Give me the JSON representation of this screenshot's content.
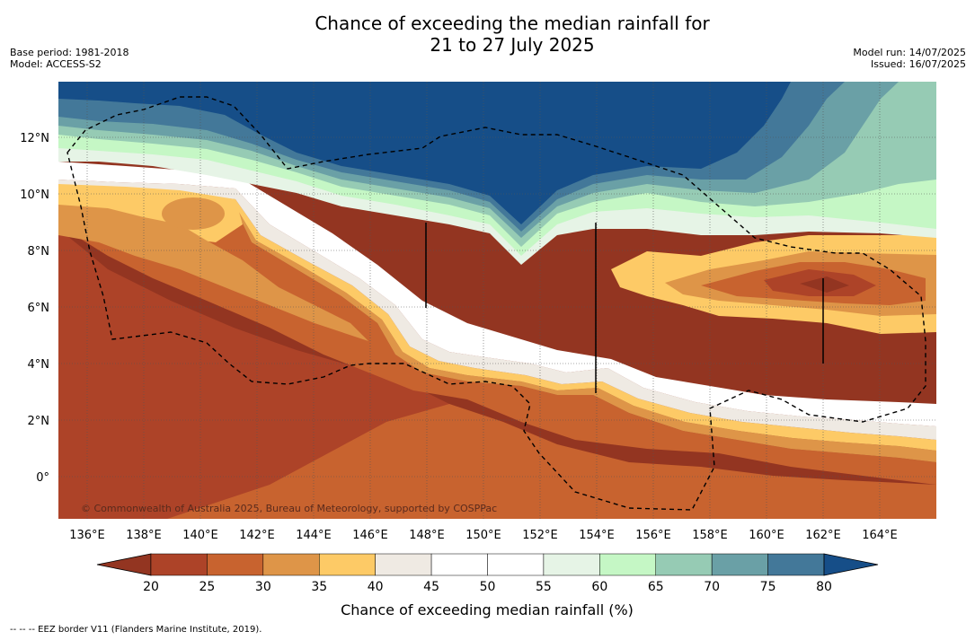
{
  "title_line1": "Chance of exceeding the median rainfall for",
  "title_line2": "21 to 27 July 2025",
  "base_period": "Base period: 1981-2018",
  "model": "Model: ACCESS-S2",
  "model_run": "Model run: 14/07/2025",
  "issued": "Issued: 16/07/2025",
  "copyright": "© Commonwealth of Australia 2025, Bureau of Meteorology, supported by COSPPac",
  "lon_ticks": [
    "136°E",
    "138°E",
    "140°E",
    "142°E",
    "144°E",
    "146°E",
    "148°E",
    "150°E",
    "152°E",
    "154°E",
    "156°E",
    "158°E",
    "160°E",
    "162°E",
    "164°E"
  ],
  "lat_ticks": [
    "12°N",
    "10°N",
    "8°N",
    "6°N",
    "4°N",
    "2°N",
    "0°"
  ],
  "colorbar": {
    "title": "Chance of exceeding median rainfall (%)",
    "ticks": [
      "20",
      "25",
      "30",
      "35",
      "40",
      "45",
      "50",
      "55",
      "60",
      "65",
      "70",
      "75",
      "80"
    ],
    "colors": [
      "#933521",
      "#ad4328",
      "#c8632f",
      "#de9548",
      "#fdca66",
      "#efeae3",
      "#ffffff",
      "#ffffff",
      "#e6f4e6",
      "#c5f7c5",
      "#96cbb4",
      "#6aa0a6",
      "#437899"
    ],
    "extend_low": "#933521",
    "extend_high": "#164e88"
  },
  "legend_note": "--  --  -- EEZ border V11 (Flanders Marine Institute, 2019)."
}
